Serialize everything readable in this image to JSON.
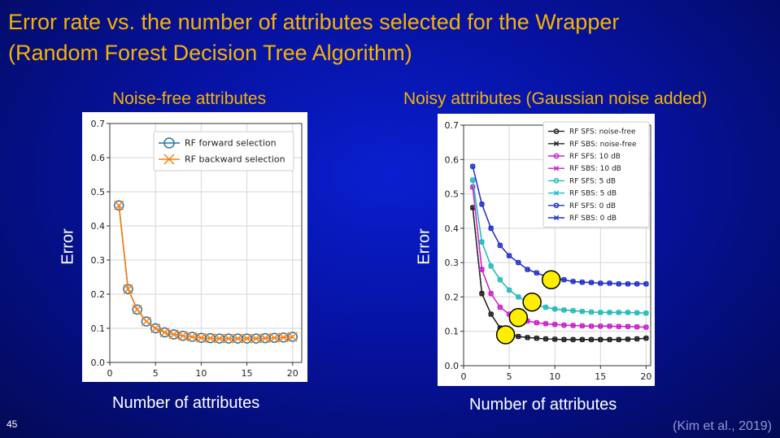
{
  "slide": {
    "title_line1": "Error rate vs. the number of attributes selected for the Wrapper",
    "title_line2": "(Random Forest Decision Tree Algorithm)",
    "left_subtitle": "Noise-free attributes",
    "right_subtitle": "Noisy attributes (Gaussian noise added)",
    "left_ylabel": "Error",
    "right_ylabel": "Error",
    "left_xlabel": "Number of attributes",
    "right_xlabel": "Number of attributes",
    "slide_number": "45",
    "citation": "(Kim et al., 2019)",
    "title_color": "#f5b400"
  },
  "chart_data": [
    {
      "type": "line",
      "title": "Noise-free attributes",
      "xlabel": "Number of attributes",
      "ylabel": "Error",
      "xlim": [
        0,
        21
      ],
      "ylim": [
        0,
        0.7
      ],
      "xticks": [
        0,
        5,
        10,
        15,
        20
      ],
      "yticks": [
        0.0,
        0.1,
        0.2,
        0.3,
        0.4,
        0.5,
        0.6,
        0.7
      ],
      "grid": true,
      "legend_position": "top-right",
      "x": [
        1,
        2,
        3,
        4,
        5,
        6,
        7,
        8,
        9,
        10,
        11,
        12,
        13,
        14,
        15,
        16,
        17,
        18,
        19,
        20
      ],
      "series": [
        {
          "name": "RF forward selection",
          "color": "#1f77b4",
          "marker": "circle",
          "values": [
            0.46,
            0.215,
            0.155,
            0.12,
            0.1,
            0.088,
            0.082,
            0.078,
            0.075,
            0.072,
            0.071,
            0.07,
            0.07,
            0.07,
            0.07,
            0.07,
            0.071,
            0.072,
            0.073,
            0.075
          ]
        },
        {
          "name": "RF backward selection",
          "color": "#ff7f0e",
          "marker": "x",
          "values": [
            0.46,
            0.215,
            0.155,
            0.12,
            0.1,
            0.088,
            0.082,
            0.078,
            0.075,
            0.072,
            0.071,
            0.07,
            0.07,
            0.07,
            0.07,
            0.07,
            0.071,
            0.072,
            0.073,
            0.075
          ]
        }
      ]
    },
    {
      "type": "line",
      "title": "Noisy attributes (Gaussian noise added)",
      "xlabel": "Number of attributes",
      "ylabel": "Error",
      "xlim": [
        0,
        20.5
      ],
      "ylim": [
        0,
        0.7
      ],
      "xticks": [
        0,
        5,
        10,
        15,
        20
      ],
      "yticks": [
        0.0,
        0.1,
        0.2,
        0.3,
        0.4,
        0.5,
        0.6,
        0.7
      ],
      "grid": true,
      "legend_position": "top-right",
      "x": [
        1,
        2,
        3,
        4,
        5,
        6,
        7,
        8,
        9,
        10,
        11,
        12,
        13,
        14,
        15,
        16,
        17,
        18,
        19,
        20
      ],
      "series": [
        {
          "name": "RF SFS: noise-free",
          "color": "#222222",
          "marker": "circle",
          "values": [
            0.46,
            0.21,
            0.15,
            0.11,
            0.09,
            0.085,
            0.082,
            0.08,
            0.078,
            0.077,
            0.076,
            0.076,
            0.076,
            0.076,
            0.076,
            0.076,
            0.076,
            0.077,
            0.078,
            0.08
          ]
        },
        {
          "name": "RF SBS: noise-free",
          "color": "#222222",
          "marker": "x",
          "values": [
            0.46,
            0.21,
            0.15,
            0.11,
            0.09,
            0.085,
            0.082,
            0.08,
            0.078,
            0.077,
            0.076,
            0.076,
            0.076,
            0.076,
            0.076,
            0.076,
            0.076,
            0.077,
            0.078,
            0.08
          ]
        },
        {
          "name": "RF SFS: 10 dB",
          "color": "#cc22cc",
          "marker": "circle",
          "values": [
            0.52,
            0.28,
            0.21,
            0.17,
            0.15,
            0.14,
            0.13,
            0.125,
            0.122,
            0.12,
            0.118,
            0.117,
            0.116,
            0.115,
            0.115,
            0.115,
            0.114,
            0.114,
            0.113,
            0.112
          ]
        },
        {
          "name": "RF SBS: 10 dB",
          "color": "#cc22cc",
          "marker": "x",
          "values": [
            0.52,
            0.28,
            0.21,
            0.17,
            0.15,
            0.14,
            0.13,
            0.125,
            0.122,
            0.12,
            0.118,
            0.117,
            0.116,
            0.115,
            0.115,
            0.115,
            0.114,
            0.114,
            0.113,
            0.112
          ]
        },
        {
          "name": "RF SFS: 5 dB",
          "color": "#22bbbb",
          "marker": "circle",
          "values": [
            0.54,
            0.36,
            0.29,
            0.25,
            0.22,
            0.2,
            0.185,
            0.175,
            0.17,
            0.165,
            0.162,
            0.16,
            0.158,
            0.156,
            0.155,
            0.155,
            0.155,
            0.155,
            0.154,
            0.153
          ]
        },
        {
          "name": "RF SBS: 5 dB",
          "color": "#22bbbb",
          "marker": "x",
          "values": [
            0.54,
            0.36,
            0.29,
            0.25,
            0.22,
            0.2,
            0.185,
            0.175,
            0.17,
            0.165,
            0.162,
            0.16,
            0.158,
            0.156,
            0.155,
            0.155,
            0.155,
            0.155,
            0.154,
            0.153
          ]
        },
        {
          "name": "RF SFS: 0 dB",
          "color": "#2233cc",
          "marker": "circle",
          "values": [
            0.58,
            0.47,
            0.4,
            0.35,
            0.32,
            0.3,
            0.28,
            0.27,
            0.26,
            0.255,
            0.25,
            0.245,
            0.243,
            0.242,
            0.24,
            0.24,
            0.238,
            0.238,
            0.238,
            0.238
          ]
        },
        {
          "name": "RF SBS: 0 dB",
          "color": "#2233cc",
          "marker": "x",
          "values": [
            0.58,
            0.47,
            0.4,
            0.35,
            0.32,
            0.3,
            0.28,
            0.27,
            0.26,
            0.255,
            0.25,
            0.245,
            0.243,
            0.242,
            0.24,
            0.24,
            0.238,
            0.238,
            0.238,
            0.238
          ]
        }
      ],
      "annotations": [
        {
          "shape": "circle",
          "color": "#ffee00",
          "x": 4.6,
          "y": 0.09
        },
        {
          "shape": "circle",
          "color": "#ffee00",
          "x": 6.0,
          "y": 0.14
        },
        {
          "shape": "circle",
          "color": "#ffee00",
          "x": 7.5,
          "y": 0.185
        },
        {
          "shape": "circle",
          "color": "#ffee00",
          "x": 9.6,
          "y": 0.25
        }
      ]
    }
  ]
}
